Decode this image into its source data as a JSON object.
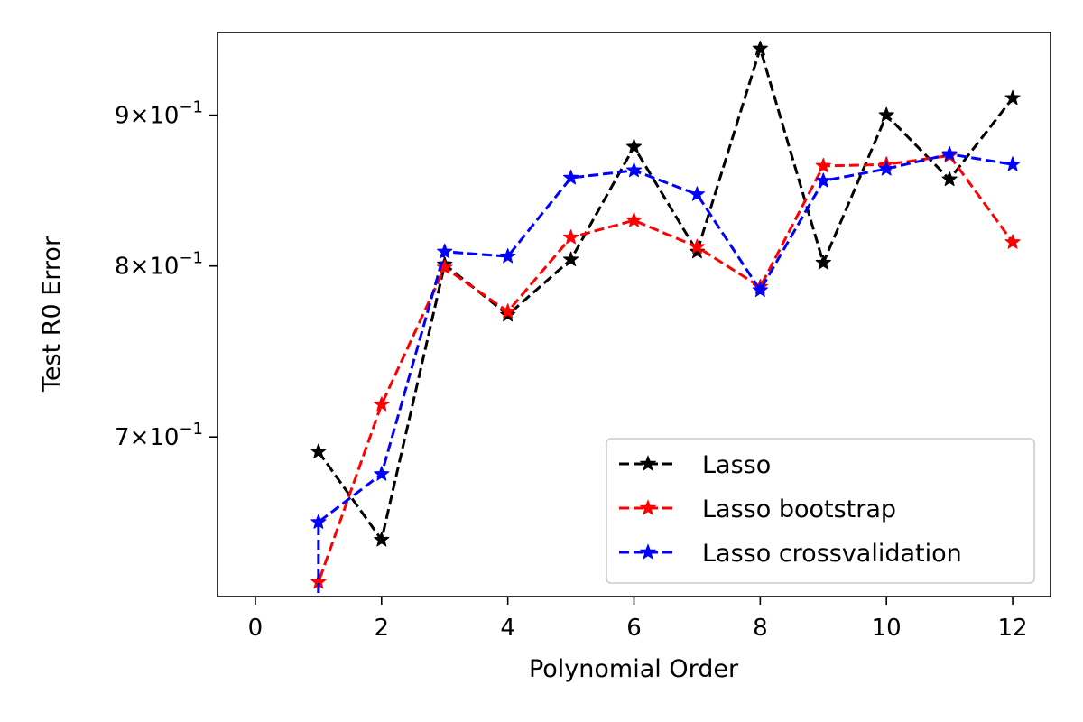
{
  "chart_data": {
    "type": "line",
    "xlabel": "Polynomial Order",
    "ylabel": "Test R0 Error",
    "xlim": [
      -0.6,
      12.6
    ],
    "ylim": [
      0.618,
      0.96
    ],
    "yscale": "log",
    "grid": false,
    "legend_position": "lower-right",
    "x_ticks": [
      {
        "value": 0,
        "label": "0"
      },
      {
        "value": 2,
        "label": "2"
      },
      {
        "value": 4,
        "label": "4"
      },
      {
        "value": 6,
        "label": "6"
      },
      {
        "value": 8,
        "label": "8"
      },
      {
        "value": 10,
        "label": "10"
      },
      {
        "value": 12,
        "label": "12"
      }
    ],
    "y_ticks": [
      {
        "value": 0.7,
        "mant": "7",
        "exp": "−1"
      },
      {
        "value": 0.8,
        "mant": "8",
        "exp": "−1"
      },
      {
        "value": 0.9,
        "mant": "9",
        "exp": "−1"
      }
    ],
    "series": [
      {
        "name": "Lasso",
        "color": "#000000",
        "x": [
          1,
          1,
          2,
          3,
          4,
          5,
          6,
          7,
          8,
          9,
          10,
          11,
          12
        ],
        "y": [
          0.692,
          0.692,
          0.646,
          0.801,
          0.77,
          0.804,
          0.878,
          0.809,
          0.948,
          0.802,
          0.9,
          0.856,
          0.912
        ]
      },
      {
        "name": "Lasso bootstrap",
        "color": "#ff0000",
        "x": [
          1,
          1,
          2,
          3,
          4,
          5,
          6,
          7,
          8,
          9,
          10,
          11,
          12
        ],
        "y": [
          0.0,
          0.625,
          0.718,
          0.799,
          0.772,
          0.818,
          0.829,
          0.812,
          0.787,
          0.865,
          0.866,
          0.872,
          0.815
        ]
      },
      {
        "name": "Lasso crossvalidation",
        "color": "#0000ff",
        "x": [
          1,
          1,
          2,
          3,
          4,
          5,
          6,
          7,
          8,
          9,
          10,
          11,
          12
        ],
        "y": [
          0.0,
          0.655,
          0.68,
          0.809,
          0.806,
          0.857,
          0.862,
          0.846,
          0.785,
          0.855,
          0.863,
          0.873,
          0.866
        ]
      }
    ]
  }
}
